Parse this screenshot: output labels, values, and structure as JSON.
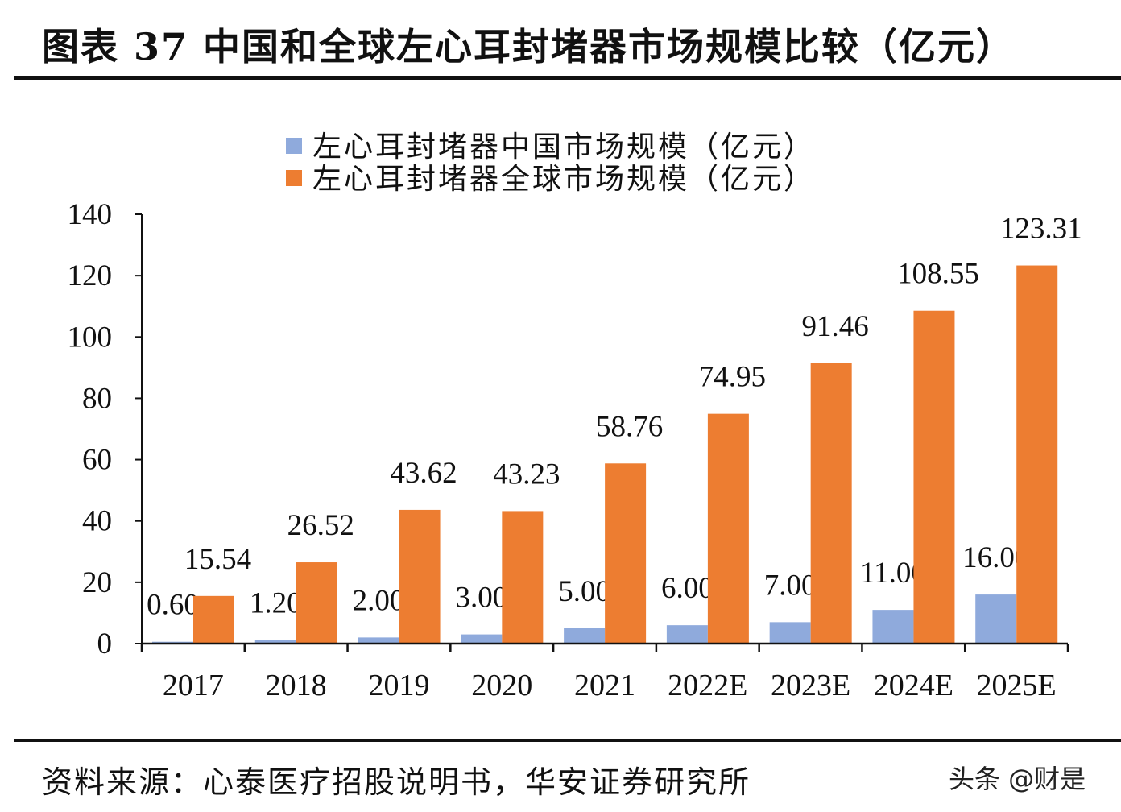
{
  "header": {
    "title": "图表 37 中国和全球左心耳封堵器市场规模比较（亿元）"
  },
  "footer": {
    "source": "资料来源：心泰医疗招股说明书，华安证券研究所",
    "watermark": "头条 @财是"
  },
  "chart_data": {
    "type": "bar",
    "title": "图表 37 中国和全球左心耳封堵器市场规模比较（亿元）",
    "categories": [
      "2017",
      "2018",
      "2019",
      "2020",
      "2021",
      "2022E",
      "2023E",
      "2024E",
      "2025E"
    ],
    "series": [
      {
        "name": "左心耳封堵器中国市场规模（亿元）",
        "color": "#8FAADC",
        "values": [
          0.6,
          1.2,
          2.0,
          3.0,
          5.0,
          6.0,
          7.0,
          11.0,
          16.0
        ],
        "labels": [
          "0.60",
          "1.20",
          "2.00",
          "3.00",
          "5.00",
          "6.00",
          "7.00",
          "11.00",
          "16.00"
        ]
      },
      {
        "name": "左心耳封堵器全球市场规模（亿元）",
        "color": "#ED7D31",
        "values": [
          15.54,
          26.52,
          43.62,
          43.23,
          58.76,
          74.95,
          91.46,
          108.55,
          123.31
        ],
        "labels": [
          "15.54",
          "26.52",
          "43.62",
          "43.23",
          "58.76",
          "74.95",
          "91.46",
          "108.55",
          "123.31"
        ]
      }
    ],
    "ylim": [
      0,
      140
    ],
    "yticks": [
      "0",
      "20",
      "40",
      "60",
      "80",
      "100",
      "120",
      "140"
    ],
    "grid": false,
    "legend": "top-center",
    "xlabel": "",
    "ylabel": ""
  }
}
